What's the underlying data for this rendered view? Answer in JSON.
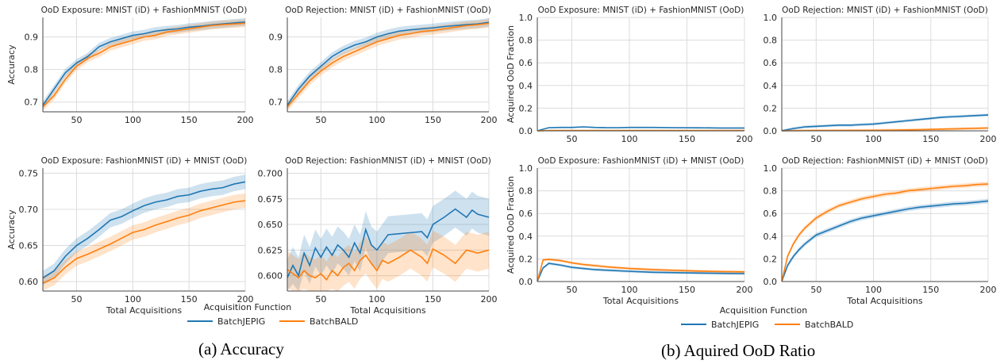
{
  "captions": {
    "a": "(a) Accuracy",
    "b": "(b) Aquired OoD Ratio"
  },
  "legend": {
    "title": "Acquisition Function",
    "entries": [
      {
        "label": "BatchJEPIG",
        "color": "#1f77b4"
      },
      {
        "label": "BatchBALD",
        "color": "#ff7f0e"
      }
    ]
  },
  "chart_data": [
    {
      "type": "line",
      "title": "OoD Exposure: MNIST (iD) + FashionMNIST (OoD)",
      "xlabel": "",
      "ylabel": "Accuracy",
      "xlim": [
        20,
        200
      ],
      "ylim": [
        0.67,
        0.96
      ],
      "xticks": [
        50,
        100,
        150,
        200
      ],
      "yticks": [
        0.7,
        0.8,
        0.9
      ],
      "ytick_labels": [
        "0.7",
        "0.8",
        "0.9"
      ],
      "grid": true,
      "band": 0.012,
      "series": [
        {
          "name": "BatchJEPIG",
          "color": "#1f77b4",
          "x": [
            20,
            30,
            40,
            50,
            60,
            70,
            80,
            90,
            100,
            110,
            120,
            130,
            140,
            150,
            160,
            170,
            180,
            190,
            200
          ],
          "y": [
            0.69,
            0.74,
            0.79,
            0.82,
            0.84,
            0.87,
            0.885,
            0.895,
            0.905,
            0.91,
            0.918,
            0.922,
            0.925,
            0.93,
            0.933,
            0.937,
            0.94,
            0.943,
            0.946
          ]
        },
        {
          "name": "BatchBALD",
          "color": "#ff7f0e",
          "x": [
            20,
            30,
            40,
            50,
            60,
            70,
            80,
            90,
            100,
            110,
            120,
            130,
            140,
            150,
            160,
            170,
            180,
            190,
            200
          ],
          "y": [
            0.685,
            0.72,
            0.77,
            0.81,
            0.835,
            0.85,
            0.87,
            0.88,
            0.89,
            0.9,
            0.905,
            0.915,
            0.92,
            0.925,
            0.93,
            0.935,
            0.938,
            0.94,
            0.942
          ]
        }
      ]
    },
    {
      "type": "line",
      "title": "OoD Rejection: MNIST (iD) + FashionMNIST (OoD)",
      "xlabel": "",
      "ylabel": "",
      "xlim": [
        20,
        200
      ],
      "ylim": [
        0.67,
        0.96
      ],
      "xticks": [
        50,
        100,
        150,
        200
      ],
      "yticks": [
        0.7,
        0.8,
        0.9
      ],
      "ytick_labels": [
        "0.7",
        "0.8",
        "0.9"
      ],
      "grid": true,
      "band": 0.013,
      "series": [
        {
          "name": "BatchJEPIG",
          "color": "#1f77b4",
          "x": [
            20,
            30,
            40,
            50,
            60,
            70,
            80,
            90,
            100,
            110,
            120,
            130,
            140,
            150,
            160,
            170,
            180,
            190,
            200
          ],
          "y": [
            0.69,
            0.74,
            0.78,
            0.81,
            0.84,
            0.86,
            0.875,
            0.885,
            0.9,
            0.91,
            0.918,
            0.922,
            0.925,
            0.928,
            0.932,
            0.935,
            0.938,
            0.94,
            0.945
          ]
        },
        {
          "name": "BatchBALD",
          "color": "#ff7f0e",
          "x": [
            20,
            30,
            40,
            50,
            60,
            70,
            80,
            90,
            100,
            110,
            120,
            130,
            140,
            150,
            160,
            170,
            180,
            190,
            200
          ],
          "y": [
            0.685,
            0.725,
            0.765,
            0.795,
            0.82,
            0.84,
            0.855,
            0.87,
            0.885,
            0.895,
            0.905,
            0.91,
            0.917,
            0.92,
            0.925,
            0.93,
            0.935,
            0.938,
            0.942
          ]
        }
      ]
    },
    {
      "type": "line",
      "title": "OoD Exposure: MNIST (iD) + FashionMNIST (OoD)",
      "xlabel": "",
      "ylabel": "Acquired OoD Fraction",
      "xlim": [
        20,
        200
      ],
      "ylim": [
        0,
        1.0
      ],
      "xticks": [
        50,
        100,
        150,
        200
      ],
      "yticks": [
        0,
        0.2,
        0.4,
        0.6,
        0.8,
        1.0
      ],
      "ytick_labels": [
        "0.0",
        "0.2",
        "0.4",
        "0.6",
        "0.8",
        "1.0"
      ],
      "grid": true,
      "band": 0.006,
      "series": [
        {
          "name": "BatchJEPIG",
          "color": "#1f77b4",
          "x": [
            20,
            30,
            40,
            50,
            60,
            70,
            80,
            90,
            100,
            120,
            140,
            160,
            180,
            200
          ],
          "y": [
            0.0,
            0.028,
            0.03,
            0.03,
            0.035,
            0.03,
            0.028,
            0.028,
            0.03,
            0.03,
            0.028,
            0.027,
            0.025,
            0.025
          ]
        },
        {
          "name": "BatchBALD",
          "color": "#ff7f0e",
          "x": [
            20,
            30,
            40,
            50,
            60,
            70,
            80,
            90,
            100,
            120,
            140,
            160,
            180,
            200
          ],
          "y": [
            0.0,
            0.003,
            0.003,
            0.003,
            0.003,
            0.003,
            0.003,
            0.003,
            0.003,
            0.003,
            0.003,
            0.003,
            0.003,
            0.003
          ]
        }
      ]
    },
    {
      "type": "line",
      "title": "OoD Rejection: MNIST (iD) + FashionMNIST (OoD)",
      "xlabel": "",
      "ylabel": "",
      "xlim": [
        20,
        200
      ],
      "ylim": [
        0,
        1.0
      ],
      "xticks": [
        50,
        100,
        150,
        200
      ],
      "yticks": [
        0,
        0.2,
        0.4,
        0.6,
        0.8,
        1.0
      ],
      "ytick_labels": [
        "0.0",
        "0.2",
        "0.4",
        "0.6",
        "0.8",
        "1.0"
      ],
      "grid": true,
      "band": 0.012,
      "series": [
        {
          "name": "BatchJEPIG",
          "color": "#1f77b4",
          "x": [
            20,
            30,
            40,
            50,
            60,
            70,
            80,
            90,
            100,
            110,
            120,
            130,
            140,
            150,
            160,
            170,
            180,
            190,
            200
          ],
          "y": [
            0.0,
            0.02,
            0.035,
            0.04,
            0.045,
            0.05,
            0.05,
            0.055,
            0.06,
            0.07,
            0.08,
            0.09,
            0.1,
            0.11,
            0.12,
            0.125,
            0.13,
            0.135,
            0.14
          ]
        },
        {
          "name": "BatchBALD",
          "color": "#ff7f0e",
          "x": [
            20,
            40,
            60,
            80,
            100,
            120,
            140,
            160,
            180,
            200
          ],
          "y": [
            0.0,
            0.002,
            0.003,
            0.004,
            0.005,
            0.007,
            0.01,
            0.015,
            0.02,
            0.025
          ]
        }
      ]
    },
    {
      "type": "line",
      "title": "OoD Exposure: FashionMNIST (iD) + MNIST (OoD)",
      "xlabel": "Total Acquisitions",
      "ylabel": "Accuracy",
      "xlim": [
        20,
        200
      ],
      "ylim": [
        0.587,
        0.757
      ],
      "xticks": [
        50,
        100,
        150,
        200
      ],
      "yticks": [
        0.6,
        0.65,
        0.7,
        0.75
      ],
      "ytick_labels": [
        "0.60",
        "0.65",
        "0.70",
        "0.75"
      ],
      "grid": true,
      "band": 0.01,
      "series": [
        {
          "name": "BatchJEPIG",
          "color": "#1f77b4",
          "x": [
            20,
            30,
            40,
            50,
            60,
            70,
            80,
            90,
            100,
            110,
            120,
            130,
            140,
            150,
            160,
            170,
            180,
            190,
            200
          ],
          "y": [
            0.605,
            0.615,
            0.635,
            0.65,
            0.66,
            0.672,
            0.685,
            0.69,
            0.698,
            0.705,
            0.71,
            0.713,
            0.718,
            0.72,
            0.725,
            0.728,
            0.73,
            0.735,
            0.738
          ]
        },
        {
          "name": "BatchBALD",
          "color": "#ff7f0e",
          "x": [
            20,
            30,
            40,
            50,
            60,
            70,
            80,
            90,
            100,
            110,
            120,
            130,
            140,
            150,
            160,
            170,
            180,
            190,
            200
          ],
          "y": [
            0.598,
            0.605,
            0.62,
            0.632,
            0.638,
            0.645,
            0.652,
            0.66,
            0.668,
            0.672,
            0.678,
            0.683,
            0.688,
            0.692,
            0.698,
            0.702,
            0.706,
            0.71,
            0.712
          ]
        }
      ]
    },
    {
      "type": "line",
      "title": "OoD Rejection: FashionMNIST (iD) + MNIST (OoD)",
      "xlabel": "Total Acquisitions",
      "ylabel": "",
      "xlim": [
        20,
        200
      ],
      "ylim": [
        0.585,
        0.705
      ],
      "xticks": [
        50,
        100,
        150,
        200
      ],
      "yticks": [
        0.6,
        0.625,
        0.65,
        0.675,
        0.7
      ],
      "ytick_labels": [
        "0.600",
        "0.625",
        "0.650",
        "0.675",
        "0.700"
      ],
      "grid": true,
      "band": 0.018,
      "series": [
        {
          "name": "BatchJEPIG",
          "color": "#1f77b4",
          "x": [
            20,
            25,
            30,
            35,
            40,
            45,
            50,
            55,
            60,
            65,
            70,
            75,
            80,
            85,
            90,
            95,
            100,
            110,
            120,
            130,
            140,
            145,
            150,
            160,
            170,
            180,
            185,
            190,
            200
          ],
          "y": [
            0.598,
            0.61,
            0.6,
            0.622,
            0.61,
            0.627,
            0.618,
            0.628,
            0.62,
            0.63,
            0.625,
            0.618,
            0.632,
            0.622,
            0.645,
            0.63,
            0.625,
            0.64,
            0.641,
            0.642,
            0.643,
            0.637,
            0.65,
            0.657,
            0.665,
            0.657,
            0.664,
            0.66,
            0.657
          ]
        },
        {
          "name": "BatchBALD",
          "color": "#ff7f0e",
          "x": [
            20,
            25,
            30,
            35,
            40,
            45,
            50,
            55,
            60,
            65,
            70,
            75,
            80,
            85,
            90,
            95,
            100,
            105,
            110,
            120,
            130,
            140,
            145,
            150,
            160,
            170,
            180,
            190,
            200
          ],
          "y": [
            0.606,
            0.602,
            0.598,
            0.605,
            0.6,
            0.598,
            0.602,
            0.596,
            0.605,
            0.6,
            0.608,
            0.612,
            0.605,
            0.615,
            0.62,
            0.612,
            0.605,
            0.615,
            0.612,
            0.618,
            0.625,
            0.618,
            0.612,
            0.626,
            0.62,
            0.612,
            0.625,
            0.622,
            0.625
          ]
        }
      ]
    },
    {
      "type": "line",
      "title": "OoD Exposure: FashionMNIST (iD) + MNIST (OoD)",
      "xlabel": "Total Acquisitions",
      "ylabel": "Acquired OoD Fraction",
      "xlim": [
        20,
        200
      ],
      "ylim": [
        0,
        1.0
      ],
      "xticks": [
        50,
        100,
        150,
        200
      ],
      "yticks": [
        0,
        0.2,
        0.4,
        0.6,
        0.8,
        1.0
      ],
      "ytick_labels": [
        "0.0",
        "0.2",
        "0.4",
        "0.6",
        "0.8",
        "1.0"
      ],
      "grid": true,
      "band": 0.012,
      "series": [
        {
          "name": "BatchJEPIG",
          "color": "#1f77b4",
          "x": [
            20,
            25,
            30,
            40,
            50,
            60,
            70,
            80,
            100,
            120,
            140,
            160,
            180,
            200
          ],
          "y": [
            0.0,
            0.12,
            0.16,
            0.145,
            0.125,
            0.115,
            0.105,
            0.1,
            0.09,
            0.082,
            0.078,
            0.075,
            0.072,
            0.07
          ]
        },
        {
          "name": "BatchBALD",
          "color": "#ff7f0e",
          "x": [
            20,
            25,
            30,
            40,
            50,
            60,
            70,
            80,
            100,
            120,
            140,
            160,
            180,
            200
          ],
          "y": [
            0.0,
            0.19,
            0.195,
            0.185,
            0.165,
            0.15,
            0.14,
            0.13,
            0.115,
            0.105,
            0.098,
            0.092,
            0.088,
            0.085
          ]
        }
      ]
    },
    {
      "type": "line",
      "title": "OoD Rejection: FashionMNIST (iD) + MNIST (OoD)",
      "xlabel": "Total Acquisitions",
      "ylabel": "",
      "xlim": [
        20,
        200
      ],
      "ylim": [
        0,
        1.0
      ],
      "xticks": [
        50,
        100,
        150,
        200
      ],
      "yticks": [
        0,
        0.2,
        0.4,
        0.6,
        0.8,
        1.0
      ],
      "ytick_labels": [
        "0.0",
        "0.2",
        "0.4",
        "0.6",
        "0.8",
        "1.0"
      ],
      "grid": true,
      "band": 0.02,
      "series": [
        {
          "name": "BatchJEPIG",
          "color": "#1f77b4",
          "x": [
            20,
            25,
            30,
            35,
            40,
            50,
            60,
            70,
            80,
            90,
            100,
            110,
            120,
            130,
            140,
            150,
            160,
            170,
            180,
            190,
            200
          ],
          "y": [
            0.0,
            0.14,
            0.22,
            0.28,
            0.33,
            0.41,
            0.45,
            0.49,
            0.53,
            0.56,
            0.58,
            0.6,
            0.62,
            0.64,
            0.655,
            0.665,
            0.675,
            0.685,
            0.69,
            0.7,
            0.71
          ]
        },
        {
          "name": "BatchBALD",
          "color": "#ff7f0e",
          "x": [
            20,
            25,
            30,
            35,
            40,
            50,
            60,
            70,
            80,
            90,
            100,
            110,
            120,
            130,
            140,
            150,
            160,
            170,
            180,
            190,
            200
          ],
          "y": [
            0.0,
            0.22,
            0.33,
            0.41,
            0.47,
            0.56,
            0.62,
            0.67,
            0.7,
            0.73,
            0.75,
            0.77,
            0.78,
            0.8,
            0.81,
            0.82,
            0.83,
            0.84,
            0.845,
            0.855,
            0.86
          ]
        }
      ]
    }
  ]
}
